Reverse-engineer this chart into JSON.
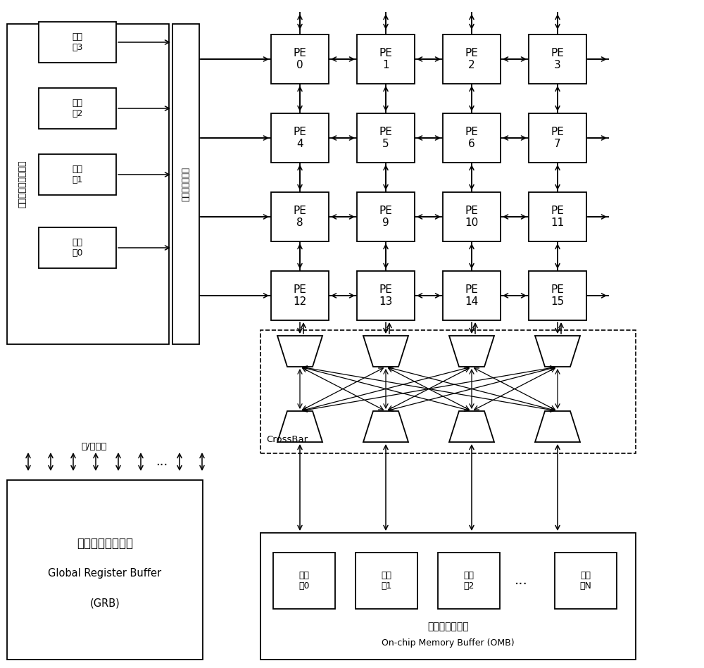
{
  "bg_color": "#ffffff",
  "onchip_config_label": "片上配置文件存储器",
  "config_ctrl_label": "配置文件控制器",
  "grb_label1": "全局寄存器缓冲区",
  "grb_label2": "Global Register Buffer",
  "grb_label3": "(GRB)",
  "rw_port_label": "读/写端口",
  "crossbar_label": "CrossBar",
  "omb_label1": "片上存储寄存器",
  "omb_label2": "On-chip Memory Buffer (OMB)",
  "mem_left_labels": [
    "存储\n体3",
    "存储\n体2",
    "存储\n体1",
    "存储\n体0"
  ],
  "mem_bottom_labels": [
    "存储\n体0",
    "存储\n体1",
    "存储\n体2",
    "存储\n体N"
  ],
  "ellipsis": "..."
}
